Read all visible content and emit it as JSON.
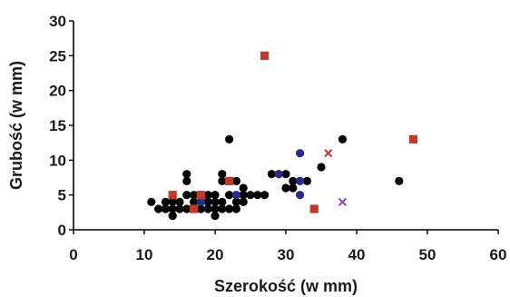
{
  "chart_data": {
    "type": "scatter",
    "xlabel": "Szerokość (w mm)",
    "ylabel": "Grubość (w mm)",
    "xlim": [
      0,
      60
    ],
    "ylim": [
      0,
      30
    ],
    "xticks": [
      "0",
      "10",
      "20",
      "30",
      "40",
      "50",
      "60"
    ],
    "yticks": [
      "0",
      "5",
      "10",
      "15",
      "20",
      "25",
      "30"
    ],
    "grid": false,
    "series": [
      {
        "marker": "circle",
        "color": "#000000",
        "points": [
          [
            11,
            4
          ],
          [
            12,
            3
          ],
          [
            13,
            3
          ],
          [
            13,
            4
          ],
          [
            14,
            2
          ],
          [
            14,
            3
          ],
          [
            14,
            4
          ],
          [
            15,
            3
          ],
          [
            15,
            4
          ],
          [
            16,
            3
          ],
          [
            16,
            5
          ],
          [
            16,
            7
          ],
          [
            16,
            8
          ],
          [
            17,
            3
          ],
          [
            17,
            4
          ],
          [
            17,
            5
          ],
          [
            18,
            3
          ],
          [
            18,
            4
          ],
          [
            19,
            3
          ],
          [
            19,
            4
          ],
          [
            19,
            5
          ],
          [
            20,
            2
          ],
          [
            20,
            3
          ],
          [
            20,
            4
          ],
          [
            20,
            5
          ],
          [
            21,
            3
          ],
          [
            21,
            4
          ],
          [
            21,
            7
          ],
          [
            21,
            8
          ],
          [
            22,
            3
          ],
          [
            22,
            5
          ],
          [
            22,
            7
          ],
          [
            22,
            13
          ],
          [
            23,
            3
          ],
          [
            23,
            4
          ],
          [
            23,
            5
          ],
          [
            23,
            7
          ],
          [
            24,
            4
          ],
          [
            24,
            5
          ],
          [
            24,
            6
          ],
          [
            25,
            5
          ],
          [
            26,
            5
          ],
          [
            27,
            5
          ],
          [
            28,
            8
          ],
          [
            29,
            8
          ],
          [
            30,
            6
          ],
          [
            30,
            8
          ],
          [
            31,
            6
          ],
          [
            31,
            7
          ],
          [
            32,
            7
          ],
          [
            33,
            7
          ],
          [
            35,
            9
          ],
          [
            38,
            13
          ],
          [
            46,
            7
          ]
        ]
      },
      {
        "marker": "circle",
        "color": "#2a2a8c",
        "points": [
          [
            18,
            4
          ],
          [
            23,
            5
          ],
          [
            29,
            8
          ],
          [
            32,
            11
          ],
          [
            32,
            7
          ],
          [
            32,
            5
          ]
        ]
      },
      {
        "marker": "square",
        "color": "#c0392b",
        "points": [
          [
            14,
            5
          ],
          [
            17,
            3
          ],
          [
            18,
            5
          ],
          [
            22,
            7
          ],
          [
            27,
            25
          ],
          [
            34,
            3
          ],
          [
            48,
            13
          ]
        ]
      },
      {
        "marker": "x",
        "color": "#c0392b",
        "points": [
          [
            36,
            11
          ]
        ]
      },
      {
        "marker": "x",
        "color": "#8e44ad",
        "points": [
          [
            38,
            4
          ]
        ]
      }
    ]
  }
}
